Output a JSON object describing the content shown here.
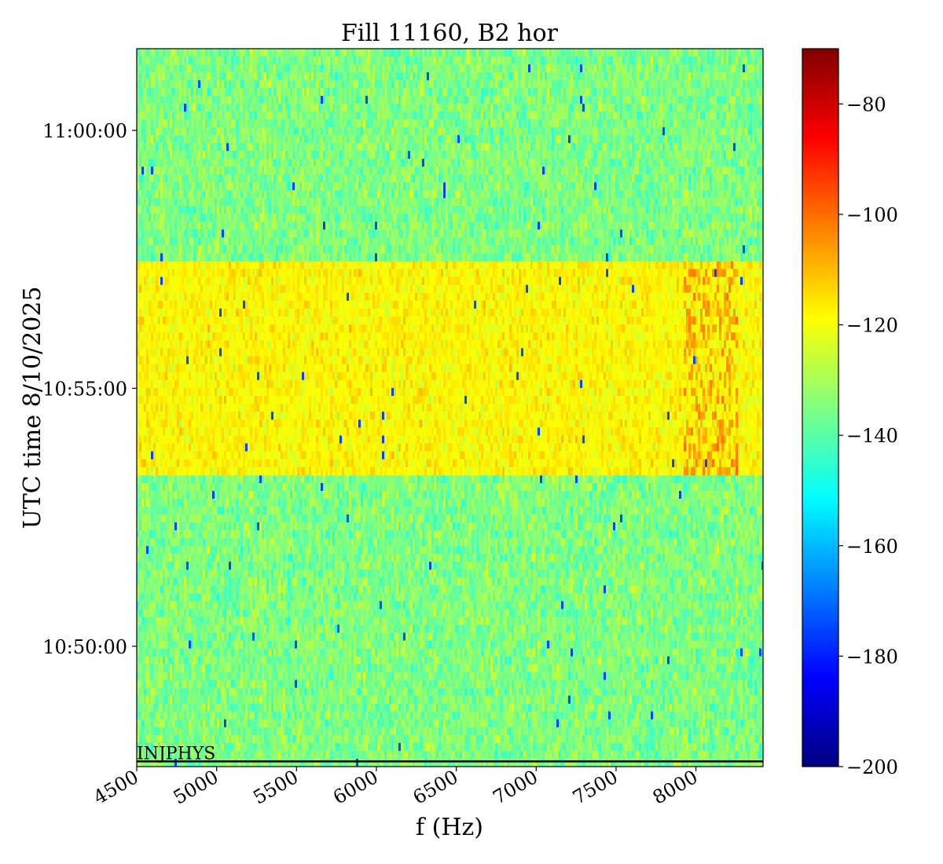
{
  "chart_data": {
    "type": "heatmap",
    "title": "Fill 11160, B2 hor",
    "xlabel": "f (Hz)",
    "ylabel": "UTC time 8/10/2025",
    "xlim": [
      4500,
      8420
    ],
    "x_ticks": [
      {
        "value": 4500,
        "label": "4500"
      },
      {
        "value": 5000,
        "label": "5000"
      },
      {
        "value": 5500,
        "label": "5500"
      },
      {
        "value": 6000,
        "label": "6000"
      },
      {
        "value": 6500,
        "label": "6500"
      },
      {
        "value": 7000,
        "label": "7000"
      },
      {
        "value": 7500,
        "label": "7500"
      },
      {
        "value": 8000,
        "label": "8000"
      }
    ],
    "ylim": [
      "10:47:40",
      "11:01:35"
    ],
    "y_ticks": [
      {
        "value": "10:50:00",
        "label": "10:50:00"
      },
      {
        "value": "10:55:00",
        "label": "10:55:00"
      },
      {
        "value": "11:00:00",
        "label": "11:00:00"
      }
    ],
    "colormap": "jet",
    "colorbar": {
      "range": [
        -200,
        -70
      ],
      "ticks": [
        {
          "value": -80,
          "label": "−80"
        },
        {
          "value": -100,
          "label": "−100"
        },
        {
          "value": -120,
          "label": "−120"
        },
        {
          "value": -140,
          "label": "−140"
        },
        {
          "value": -160,
          "label": "−160"
        },
        {
          "value": -180,
          "label": "−180"
        },
        {
          "value": -200,
          "label": "−200"
        }
      ]
    },
    "regions": [
      {
        "t_start": "10:47:40",
        "t_end": "10:53:19",
        "mean_level": -135,
        "jitter": 6
      },
      {
        "t_start": "10:53:19",
        "t_end": "10:57:28",
        "mean_level": -118,
        "jitter": 4,
        "hot_band_hz": [
          7930,
          8260
        ],
        "hot_level": -106
      },
      {
        "t_start": "10:57:28",
        "t_end": "11:01:35",
        "mean_level": -135,
        "jitter": 6
      }
    ],
    "annotations": [
      {
        "text": "INJPHYS",
        "time": "10:47:46",
        "x": 4500
      }
    ]
  }
}
